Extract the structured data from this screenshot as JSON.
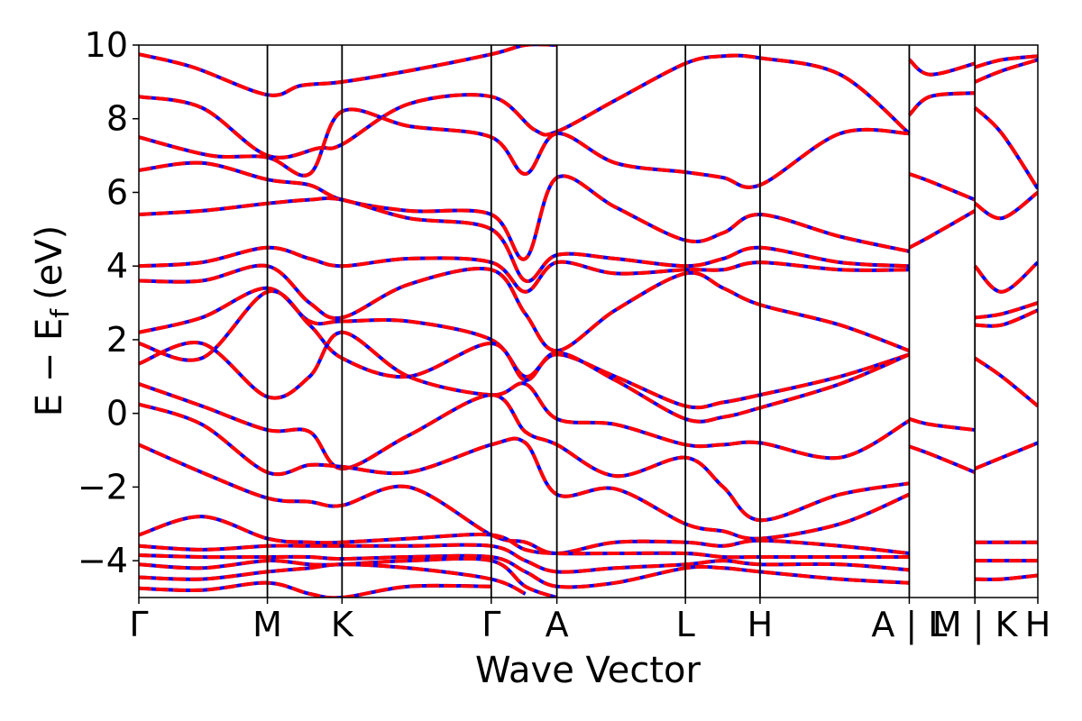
{
  "chart_data": {
    "type": "line",
    "xlabel": "Wave Vector",
    "ylabel": "E − E",
    "ylabel_subscript": "f",
    "ylabel_unit": "(eV)",
    "ylim": [
      -5,
      10
    ],
    "y_ticks": [
      -4,
      -2,
      0,
      2,
      4,
      6,
      8,
      10
    ],
    "y_tick_labels": [
      "−4",
      "−2",
      "0",
      "2",
      "4",
      "6",
      "8",
      "10"
    ],
    "k_points": [
      {
        "label": "Γ",
        "x": 0.0
      },
      {
        "label": "M",
        "x": 0.143
      },
      {
        "label": "K",
        "x": 0.226
      },
      {
        "label": "Γ",
        "x": 0.392
      },
      {
        "label": "A",
        "x": 0.465
      },
      {
        "label": "L",
        "x": 0.608
      },
      {
        "label": "H",
        "x": 0.691
      },
      {
        "label": "A | L",
        "x": 0.857
      },
      {
        "label": "M | K",
        "x": 0.93
      },
      {
        "label": "H",
        "x": 1.0
      }
    ],
    "xlim": [
      0,
      1
    ],
    "grid": false,
    "legend": "none",
    "series_style": [
      {
        "color": "#0000ff",
        "linestyle": "solid"
      },
      {
        "color": "#ff0000",
        "linestyle": "dashed"
      }
    ],
    "bands": [
      [
        [
          0,
          9.75
        ],
        [
          0.06,
          9.4
        ],
        [
          0.143,
          8.65
        ],
        [
          0.18,
          8.9
        ],
        [
          0.226,
          9.0
        ],
        [
          0.3,
          9.3
        ],
        [
          0.392,
          9.75
        ],
        [
          0.43,
          10.0
        ],
        [
          0.465,
          10.0
        ]
      ],
      [
        [
          0,
          8.6
        ],
        [
          0.07,
          8.3
        ],
        [
          0.143,
          7.0
        ],
        [
          0.2,
          7.2
        ],
        [
          0.226,
          7.3
        ],
        [
          0.3,
          8.4
        ],
        [
          0.392,
          8.6
        ],
        [
          0.44,
          7.7
        ],
        [
          0.465,
          7.65
        ],
        [
          0.53,
          8.5
        ],
        [
          0.608,
          9.5
        ],
        [
          0.65,
          9.7
        ],
        [
          0.691,
          9.65
        ],
        [
          0.78,
          9.2
        ],
        [
          0.857,
          7.6
        ]
      ],
      [
        [
          0,
          7.5
        ],
        [
          0.08,
          7.0
        ],
        [
          0.143,
          6.95
        ],
        [
          0.19,
          6.5
        ],
        [
          0.226,
          8.2
        ],
        [
          0.3,
          7.8
        ],
        [
          0.392,
          7.5
        ],
        [
          0.43,
          6.5
        ],
        [
          0.465,
          7.6
        ],
        [
          0.53,
          6.8
        ],
        [
          0.608,
          6.55
        ],
        [
          0.65,
          6.4
        ],
        [
          0.691,
          6.2
        ],
        [
          0.78,
          7.6
        ],
        [
          0.857,
          7.6
        ]
      ],
      [
        [
          0,
          6.6
        ],
        [
          0.07,
          6.8
        ],
        [
          0.143,
          6.35
        ],
        [
          0.19,
          6.2
        ],
        [
          0.226,
          5.8
        ],
        [
          0.3,
          5.5
        ],
        [
          0.392,
          5.4
        ],
        [
          0.43,
          4.2
        ],
        [
          0.465,
          6.4
        ],
        [
          0.53,
          5.6
        ],
        [
          0.608,
          4.7
        ],
        [
          0.65,
          4.9
        ],
        [
          0.691,
          5.4
        ],
        [
          0.78,
          4.8
        ],
        [
          0.857,
          4.4
        ]
      ],
      [
        [
          0,
          5.4
        ],
        [
          0.07,
          5.5
        ],
        [
          0.143,
          5.7
        ],
        [
          0.19,
          5.8
        ],
        [
          0.226,
          5.8
        ],
        [
          0.3,
          5.3
        ],
        [
          0.392,
          5.0
        ],
        [
          0.43,
          3.6
        ],
        [
          0.465,
          4.3
        ],
        [
          0.53,
          4.2
        ],
        [
          0.608,
          4.0
        ],
        [
          0.65,
          4.2
        ],
        [
          0.691,
          4.5
        ],
        [
          0.78,
          4.1
        ],
        [
          0.857,
          4.0
        ]
      ],
      [
        [
          0,
          4.0
        ],
        [
          0.07,
          4.1
        ],
        [
          0.143,
          4.5
        ],
        [
          0.19,
          4.2
        ],
        [
          0.226,
          4.0
        ],
        [
          0.3,
          4.2
        ],
        [
          0.392,
          4.1
        ],
        [
          0.43,
          3.3
        ],
        [
          0.465,
          4.1
        ],
        [
          0.53,
          3.8
        ],
        [
          0.608,
          3.9
        ],
        [
          0.65,
          3.9
        ],
        [
          0.691,
          4.1
        ],
        [
          0.78,
          3.9
        ],
        [
          0.857,
          3.9
        ]
      ],
      [
        [
          0,
          3.6
        ],
        [
          0.07,
          3.6
        ],
        [
          0.143,
          4.0
        ],
        [
          0.19,
          3.0
        ],
        [
          0.226,
          2.6
        ],
        [
          0.3,
          3.5
        ],
        [
          0.392,
          3.9
        ],
        [
          0.43,
          2.7
        ],
        [
          0.465,
          1.7
        ],
        [
          0.53,
          2.8
        ],
        [
          0.608,
          3.8
        ],
        [
          0.65,
          3.4
        ],
        [
          0.691,
          2.95
        ],
        [
          0.78,
          2.4
        ],
        [
          0.857,
          1.7
        ]
      ],
      [
        [
          0,
          2.2
        ],
        [
          0.07,
          2.6
        ],
        [
          0.143,
          3.4
        ],
        [
          0.19,
          2.5
        ],
        [
          0.226,
          2.5
        ],
        [
          0.3,
          2.5
        ],
        [
          0.392,
          2.0
        ],
        [
          0.43,
          1.0
        ],
        [
          0.465,
          1.6
        ],
        [
          0.53,
          1.0
        ],
        [
          0.608,
          0.2
        ],
        [
          0.65,
          0.3
        ],
        [
          0.691,
          0.5
        ],
        [
          0.78,
          1.0
        ],
        [
          0.857,
          1.6
        ]
      ],
      [
        [
          0,
          1.9
        ],
        [
          0.07,
          1.5
        ],
        [
          0.143,
          3.3
        ],
        [
          0.19,
          2.4
        ],
        [
          0.226,
          1.5
        ],
        [
          0.3,
          1.0
        ],
        [
          0.392,
          1.9
        ],
        [
          0.43,
          0.9
        ],
        [
          0.465,
          1.65
        ],
        [
          0.53,
          0.9
        ],
        [
          0.608,
          -0.15
        ],
        [
          0.65,
          -0.1
        ],
        [
          0.691,
          0.15
        ],
        [
          0.78,
          0.8
        ],
        [
          0.857,
          1.6
        ]
      ],
      [
        [
          0,
          1.35
        ],
        [
          0.07,
          1.9
        ],
        [
          0.143,
          0.45
        ],
        [
          0.19,
          1.0
        ],
        [
          0.226,
          2.2
        ],
        [
          0.3,
          1.0
        ],
        [
          0.392,
          0.5
        ],
        [
          0.43,
          0.8
        ],
        [
          0.465,
          -0.15
        ],
        [
          0.53,
          -0.3
        ],
        [
          0.608,
          -0.85
        ],
        [
          0.65,
          -0.85
        ],
        [
          0.691,
          -0.8
        ],
        [
          0.78,
          -1.2
        ],
        [
          0.857,
          -0.2
        ]
      ],
      [
        [
          0,
          0.8
        ],
        [
          0.07,
          0.2
        ],
        [
          0.143,
          -0.45
        ],
        [
          0.19,
          -0.5
        ],
        [
          0.226,
          -1.5
        ],
        [
          0.3,
          -0.6
        ],
        [
          0.392,
          0.5
        ],
        [
          0.43,
          -0.5
        ],
        [
          0.465,
          -0.85
        ],
        [
          0.53,
          -1.7
        ],
        [
          0.608,
          -1.2
        ],
        [
          0.65,
          -2.0
        ],
        [
          0.691,
          -2.9
        ],
        [
          0.78,
          -2.2
        ],
        [
          0.857,
          -1.9
        ]
      ],
      [
        [
          0,
          0.25
        ],
        [
          0.07,
          -0.3
        ],
        [
          0.143,
          -1.6
        ],
        [
          0.19,
          -1.4
        ],
        [
          0.226,
          -1.45
        ],
        [
          0.3,
          -1.6
        ],
        [
          0.392,
          -0.85
        ],
        [
          0.43,
          -0.8
        ],
        [
          0.465,
          -2.2
        ],
        [
          0.53,
          -2.05
        ],
        [
          0.608,
          -3.0
        ],
        [
          0.65,
          -3.2
        ],
        [
          0.691,
          -3.4
        ],
        [
          0.78,
          -3.0
        ],
        [
          0.857,
          -2.2
        ]
      ],
      [
        [
          0,
          -0.85
        ],
        [
          0.07,
          -1.6
        ],
        [
          0.143,
          -2.3
        ],
        [
          0.19,
          -2.4
        ],
        [
          0.226,
          -2.5
        ],
        [
          0.3,
          -2.0
        ],
        [
          0.392,
          -3.3
        ],
        [
          0.43,
          -3.5
        ],
        [
          0.465,
          -3.8
        ],
        [
          0.53,
          -3.5
        ],
        [
          0.608,
          -3.5
        ],
        [
          0.65,
          -3.6
        ],
        [
          0.691,
          -3.45
        ],
        [
          0.78,
          -3.6
        ],
        [
          0.857,
          -3.8
        ]
      ],
      [
        [
          0,
          -3.3
        ],
        [
          0.07,
          -2.8
        ],
        [
          0.143,
          -3.4
        ],
        [
          0.19,
          -3.5
        ],
        [
          0.226,
          -3.5
        ],
        [
          0.3,
          -3.4
        ],
        [
          0.392,
          -3.3
        ],
        [
          0.43,
          -3.7
        ],
        [
          0.465,
          -3.8
        ],
        [
          0.53,
          -3.8
        ],
        [
          0.608,
          -3.8
        ],
        [
          0.65,
          -3.9
        ],
        [
          0.691,
          -3.9
        ],
        [
          0.78,
          -3.9
        ],
        [
          0.857,
          -3.9
        ]
      ],
      [
        [
          0,
          -3.6
        ],
        [
          0.07,
          -3.7
        ],
        [
          0.143,
          -3.6
        ],
        [
          0.19,
          -3.6
        ],
        [
          0.226,
          -3.6
        ],
        [
          0.3,
          -3.6
        ],
        [
          0.392,
          -3.6
        ],
        [
          0.43,
          -4.0
        ],
        [
          0.465,
          -4.3
        ],
        [
          0.53,
          -4.2
        ],
        [
          0.608,
          -4.1
        ],
        [
          0.65,
          -4.0
        ],
        [
          0.691,
          -4.1
        ],
        [
          0.78,
          -4.1
        ],
        [
          0.857,
          -4.25
        ]
      ],
      [
        [
          0,
          -3.85
        ],
        [
          0.07,
          -3.9
        ],
        [
          0.143,
          -3.9
        ],
        [
          0.19,
          -3.9
        ],
        [
          0.226,
          -3.95
        ],
        [
          0.3,
          -3.9
        ],
        [
          0.392,
          -3.9
        ],
        [
          0.43,
          -4.3
        ],
        [
          0.465,
          -4.7
        ],
        [
          0.53,
          -4.6
        ],
        [
          0.608,
          -4.2
        ],
        [
          0.65,
          -4.2
        ],
        [
          0.691,
          -4.3
        ],
        [
          0.78,
          -4.5
        ],
        [
          0.857,
          -4.6
        ]
      ],
      [
        [
          0,
          -4.1
        ],
        [
          0.07,
          -4.2
        ],
        [
          0.143,
          -4.0
        ],
        [
          0.19,
          -4.1
        ],
        [
          0.226,
          -4.1
        ],
        [
          0.3,
          -4.0
        ],
        [
          0.392,
          -4.0
        ],
        [
          0.43,
          -4.7
        ],
        [
          0.465,
          -5.0
        ]
      ],
      [
        [
          0,
          -4.45
        ],
        [
          0.07,
          -4.5
        ],
        [
          0.143,
          -4.3
        ],
        [
          0.19,
          -4.2
        ],
        [
          0.226,
          -4.1
        ],
        [
          0.3,
          -4.2
        ],
        [
          0.392,
          -4.5
        ],
        [
          0.43,
          -4.9
        ]
      ],
      [
        [
          0,
          -4.75
        ],
        [
          0.07,
          -4.8
        ],
        [
          0.143,
          -4.6
        ],
        [
          0.19,
          -4.9
        ],
        [
          0.226,
          -5.0
        ],
        [
          0.3,
          -4.7
        ],
        [
          0.392,
          -4.7
        ]
      ],
      [
        [
          0.857,
          -0.15
        ],
        [
          0.88,
          -0.3
        ],
        [
          0.93,
          -0.45
        ]
      ],
      [
        [
          0.857,
          -0.9
        ],
        [
          0.88,
          -1.1
        ],
        [
          0.93,
          -1.6
        ]
      ],
      [
        [
          0.857,
          4.5
        ],
        [
          0.88,
          4.8
        ],
        [
          0.93,
          5.5
        ]
      ],
      [
        [
          0.857,
          6.5
        ],
        [
          0.88,
          6.3
        ],
        [
          0.93,
          5.8
        ]
      ],
      [
        [
          0.857,
          8.1
        ],
        [
          0.88,
          8.6
        ],
        [
          0.93,
          8.7
        ]
      ],
      [
        [
          0.857,
          9.6
        ],
        [
          0.88,
          9.2
        ],
        [
          0.93,
          9.5
        ]
      ],
      [
        [
          0.93,
          8.3
        ],
        [
          0.96,
          7.6
        ],
        [
          1.0,
          6.1
        ]
      ],
      [
        [
          0.93,
          5.7
        ],
        [
          0.96,
          5.3
        ],
        [
          1.0,
          6.0
        ]
      ],
      [
        [
          0.93,
          4.0
        ],
        [
          0.96,
          3.3
        ],
        [
          1.0,
          4.1
        ]
      ],
      [
        [
          0.93,
          2.6
        ],
        [
          0.96,
          2.7
        ],
        [
          1.0,
          3.0
        ]
      ],
      [
        [
          0.93,
          2.4
        ],
        [
          0.96,
          2.4
        ],
        [
          1.0,
          2.8
        ]
      ],
      [
        [
          0.93,
          1.5
        ],
        [
          0.96,
          1.0
        ],
        [
          1.0,
          0.2
        ]
      ],
      [
        [
          0.93,
          -1.5
        ],
        [
          0.96,
          -1.2
        ],
        [
          1.0,
          -0.8
        ]
      ],
      [
        [
          0.93,
          -3.5
        ],
        [
          0.96,
          -3.5
        ],
        [
          1.0,
          -3.5
        ]
      ],
      [
        [
          0.93,
          -4.0
        ],
        [
          0.96,
          -4.0
        ],
        [
          1.0,
          -4.0
        ]
      ],
      [
        [
          0.93,
          -4.5
        ],
        [
          0.96,
          -4.5
        ],
        [
          1.0,
          -4.4
        ]
      ],
      [
        [
          0.93,
          9.0
        ],
        [
          0.96,
          9.3
        ],
        [
          1.0,
          9.6
        ]
      ],
      [
        [
          0.93,
          9.4
        ],
        [
          0.96,
          9.6
        ],
        [
          1.0,
          9.7
        ]
      ]
    ]
  }
}
